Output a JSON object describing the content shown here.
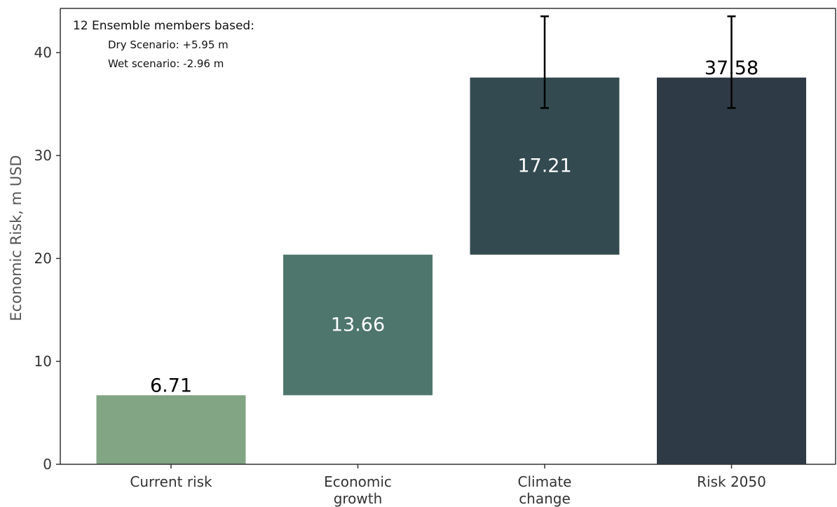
{
  "chart_data": {
    "type": "bar",
    "subtype": "waterfall",
    "title": "",
    "xlabel": "",
    "ylabel": "Economic Risk, m USD",
    "ylim": [
      0,
      44.3
    ],
    "yticks": [
      0,
      10,
      20,
      30,
      40
    ],
    "grid": false,
    "categories": [
      [
        "Current risk"
      ],
      [
        "Economic",
        "growth"
      ],
      [
        "Climate",
        "change"
      ],
      [
        "Risk 2050"
      ]
    ],
    "bars": [
      {
        "base": 0,
        "value": 6.71,
        "label": "6.71",
        "label_position": "above",
        "color": "#82a584"
      },
      {
        "base": 6.71,
        "value": 13.66,
        "label": "13.66",
        "label_position": "inside",
        "color": "#4f766d"
      },
      {
        "base": 20.37,
        "value": 17.21,
        "label": "17.21",
        "label_position": "inside",
        "color": "#324a50"
      },
      {
        "base": 0,
        "value": 37.58,
        "label": "37.58",
        "label_position": "above",
        "color": "#2e3a46"
      }
    ],
    "error_bars": [
      {
        "category_index": 2,
        "center": 37.58,
        "upper": 43.53,
        "lower": 34.62
      },
      {
        "category_index": 3,
        "center": 37.58,
        "upper": 43.53,
        "lower": 34.62
      }
    ],
    "annotation": {
      "position": "top-left",
      "lines": [
        "12 Ensemble members based:",
        "Dry Scenario: +5.95 m",
        "Wet scenario: -2.96 m"
      ]
    }
  }
}
